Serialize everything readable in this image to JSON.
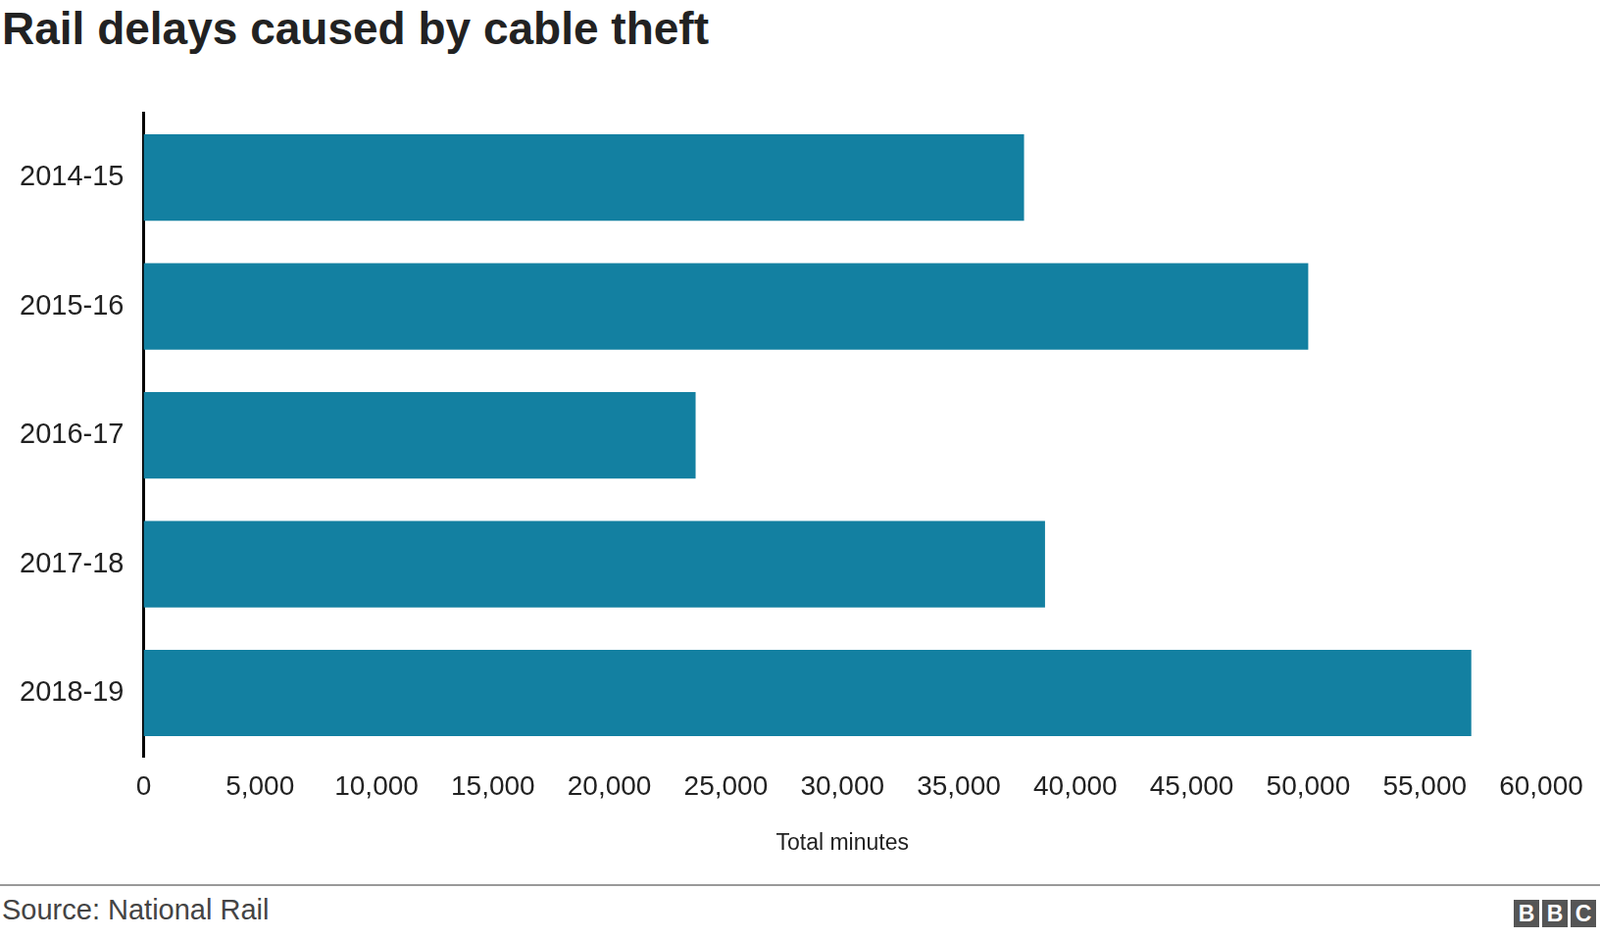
{
  "chart_data": {
    "type": "bar",
    "orientation": "horizontal",
    "title": "Rail delays caused by cable theft",
    "x_label": "Total minutes",
    "source": "Source: National Rail",
    "logo": "BBC",
    "categories": [
      "2014-15",
      "2015-16",
      "2016-17",
      "2017-18",
      "2018-19"
    ],
    "values": [
      37800,
      50000,
      23700,
      38700,
      57000
    ],
    "color": "#1380a1",
    "xlim": [
      0,
      60000
    ],
    "xticks": [
      0,
      {
        "value": 5000,
        "label": "5,000"
      },
      {
        "value": 10000,
        "label": "10,000"
      },
      {
        "value": 15000,
        "label": "15,000"
      },
      {
        "value": 20000,
        "label": "20,000"
      },
      {
        "value": 25000,
        "label": "25,000"
      },
      {
        "value": 30000,
        "label": "30,000"
      },
      {
        "value": 35000,
        "label": "35,000"
      },
      {
        "value": 40000,
        "label": "40,000"
      },
      {
        "value": 45000,
        "label": "45,000"
      },
      {
        "value": 50000,
        "label": "50,000"
      },
      {
        "value": 55000,
        "label": "55,000"
      },
      {
        "value": 60000,
        "label": "60,000"
      }
    ],
    "grid": false
  }
}
